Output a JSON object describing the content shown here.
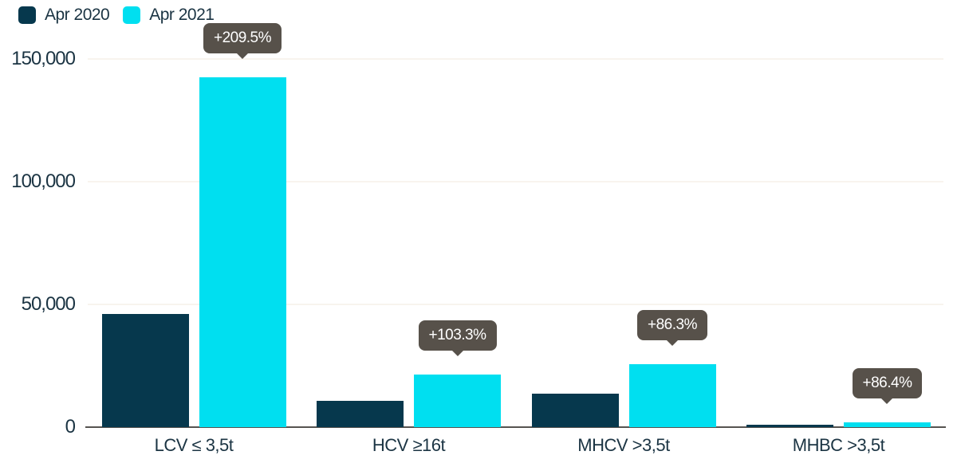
{
  "legend": {
    "items": [
      {
        "label": "Apr 2020",
        "color": "#06384d"
      },
      {
        "label": "Apr 2021",
        "color": "#00dff0"
      }
    ]
  },
  "y_axis": {
    "tick_labels": [
      "0",
      "50,000",
      "100,000",
      "150,000"
    ]
  },
  "chart_data": {
    "type": "bar",
    "categories": [
      "LCV ≤ 3,5t",
      "HCV ≥16t",
      "MHCV >3,5t",
      "MHBC >3,5t"
    ],
    "series": [
      {
        "name": "Apr 2020",
        "color": "#06384d",
        "values": [
          46000,
          10600,
          13700,
          1000
        ]
      },
      {
        "name": "Apr 2021",
        "color": "#00dff0",
        "values": [
          142400,
          21550,
          25500,
          1860
        ]
      }
    ],
    "annotations": [
      "+209.5%",
      "+103.3%",
      "+86.3%",
      "+86.4%"
    ],
    "ylim": [
      0,
      150000
    ],
    "yticks": [
      0,
      50000,
      100000,
      150000
    ],
    "grid": "horizontal",
    "legend_position": "top-left"
  },
  "colors": {
    "background": "#ffffff",
    "text": "#1b3443",
    "gridline": "#f8f4ee",
    "axis_line": "#565350",
    "tooltip_bg": "#57514a",
    "tooltip_text": "#ffffff"
  }
}
